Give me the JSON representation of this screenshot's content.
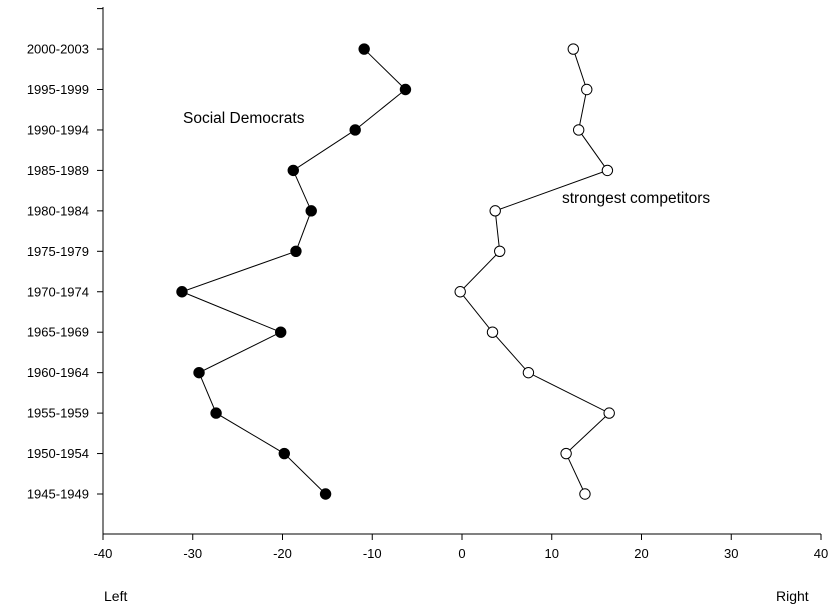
{
  "chart_data": {
    "type": "scatter",
    "title": "",
    "xlabel": "",
    "ylabel": "",
    "xlim": [
      -40,
      40
    ],
    "x_ticks": [
      -40,
      -30,
      -20,
      -10,
      0,
      10,
      20,
      30,
      40
    ],
    "x_axis_words": {
      "left": "Left",
      "right": "Right"
    },
    "categories": [
      "1945-1949",
      "1950-1954",
      "1955-1959",
      "1960-1964",
      "1965-1969",
      "1970-1974",
      "1975-1979",
      "1980-1984",
      "1985-1989",
      "1990-1994",
      "1995-1999",
      "2000-2003"
    ],
    "grid": false,
    "legend": "none",
    "series": [
      {
        "name": "Social Democrats",
        "marker": "filled-circle",
        "color": "#000000",
        "values": [
          -15.2,
          -19.8,
          -27.4,
          -29.3,
          -20.2,
          -31.2,
          -18.5,
          -16.8,
          -18.8,
          -11.9,
          -6.3,
          -10.9
        ]
      },
      {
        "name": "strongest competitors",
        "marker": "open-circle",
        "color": "#000000",
        "values": [
          13.7,
          11.6,
          16.4,
          7.4,
          3.4,
          -0.2,
          4.2,
          3.7,
          16.2,
          13.0,
          13.9,
          12.4
        ]
      }
    ]
  }
}
